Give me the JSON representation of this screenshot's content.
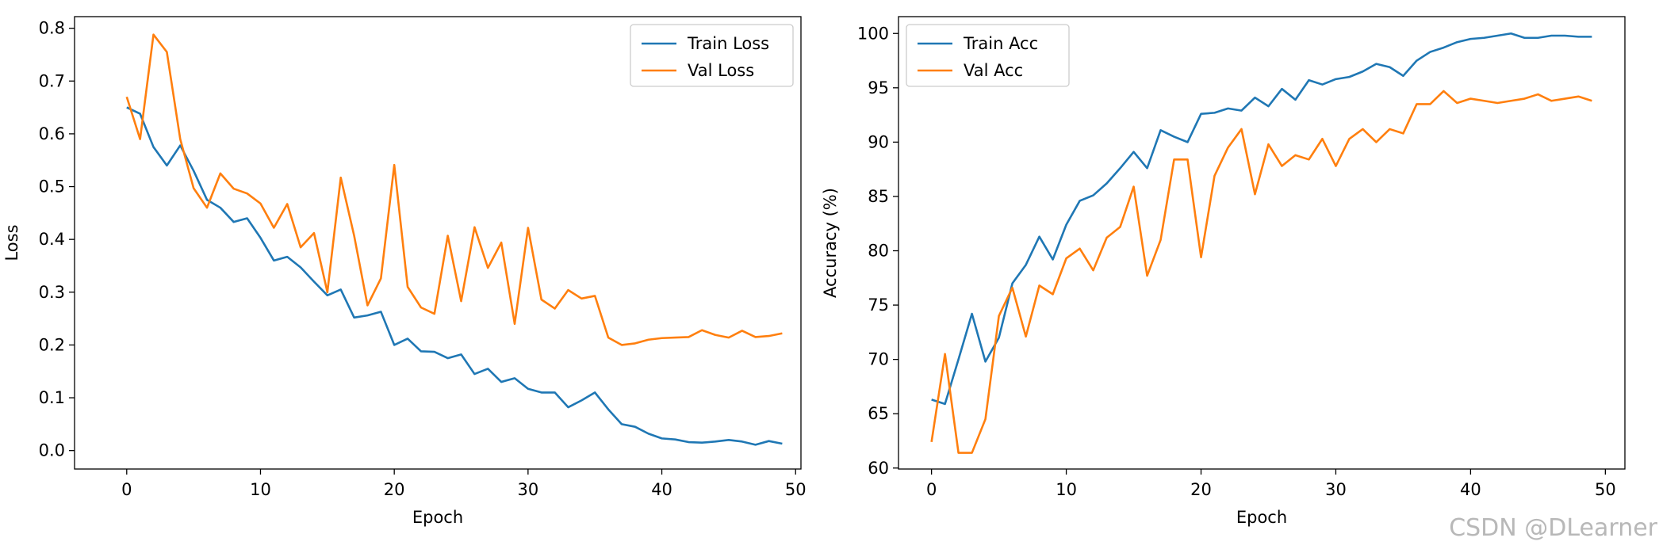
{
  "watermark": "CSDN @DLearner",
  "colors": {
    "train": "#1f77b4",
    "val": "#ff7f0e"
  },
  "chart_data": [
    {
      "type": "line",
      "xlabel": "Epoch",
      "ylabel": "Loss",
      "xlim": [
        -3.9,
        50.4
      ],
      "ylim": [
        -0.035,
        0.822
      ],
      "xticks": [
        0,
        10,
        20,
        30,
        40,
        50
      ],
      "yticks": [
        0.0,
        0.1,
        0.2,
        0.3,
        0.4,
        0.5,
        0.6,
        0.7,
        0.8
      ],
      "ytick_labels": [
        "0.0",
        "0.1",
        "0.2",
        "0.3",
        "0.4",
        "0.5",
        "0.6",
        "0.7",
        "0.8"
      ],
      "grid": false,
      "legend_position": "top-right",
      "x": [
        0,
        1,
        2,
        3,
        4,
        5,
        6,
        7,
        8,
        9,
        10,
        11,
        12,
        13,
        14,
        15,
        16,
        17,
        18,
        19,
        20,
        21,
        22,
        23,
        24,
        25,
        26,
        27,
        28,
        29,
        30,
        31,
        32,
        33,
        34,
        35,
        36,
        37,
        38,
        39,
        40,
        41,
        42,
        43,
        44,
        45,
        46,
        47,
        48,
        49
      ],
      "series": [
        {
          "name": "Train Loss",
          "color": "#1f77b4",
          "values": [
            0.65,
            0.638,
            0.575,
            0.54,
            0.578,
            0.53,
            0.475,
            0.46,
            0.433,
            0.44,
            0.403,
            0.36,
            0.367,
            0.347,
            0.32,
            0.294,
            0.305,
            0.252,
            0.256,
            0.263,
            0.2,
            0.212,
            0.188,
            0.187,
            0.175,
            0.182,
            0.145,
            0.155,
            0.13,
            0.137,
            0.117,
            0.11,
            0.11,
            0.082,
            0.095,
            0.11,
            0.078,
            0.05,
            0.045,
            0.032,
            0.023,
            0.021,
            0.016,
            0.015,
            0.017,
            0.02,
            0.017,
            0.011,
            0.018,
            0.013
          ]
        },
        {
          "name": "Val Loss",
          "color": "#ff7f0e",
          "values": [
            0.67,
            0.59,
            0.788,
            0.755,
            0.59,
            0.497,
            0.46,
            0.525,
            0.496,
            0.487,
            0.468,
            0.422,
            0.467,
            0.385,
            0.412,
            0.3,
            0.517,
            0.407,
            0.275,
            0.326,
            0.541,
            0.31,
            0.271,
            0.259,
            0.407,
            0.283,
            0.423,
            0.346,
            0.394,
            0.24,
            0.422,
            0.286,
            0.269,
            0.304,
            0.288,
            0.293,
            0.214,
            0.2,
            0.203,
            0.21,
            0.213,
            0.214,
            0.215,
            0.228,
            0.219,
            0.214,
            0.227,
            0.215,
            0.217,
            0.222
          ]
        }
      ]
    },
    {
      "type": "line",
      "xlabel": "Epoch",
      "ylabel": "Accuracy (%)",
      "xlim": [
        -2.45,
        51.45
      ],
      "ylim": [
        59.91,
        101.55
      ],
      "xticks": [
        0,
        10,
        20,
        30,
        40,
        50
      ],
      "yticks": [
        60,
        65,
        70,
        75,
        80,
        85,
        90,
        95,
        100
      ],
      "ytick_labels": [
        "60",
        "65",
        "70",
        "75",
        "80",
        "85",
        "90",
        "95",
        "100"
      ],
      "grid": false,
      "legend_position": "top-left",
      "x": [
        0,
        1,
        2,
        3,
        4,
        5,
        6,
        7,
        8,
        9,
        10,
        11,
        12,
        13,
        14,
        15,
        16,
        17,
        18,
        19,
        20,
        21,
        22,
        23,
        24,
        25,
        26,
        27,
        28,
        29,
        30,
        31,
        32,
        33,
        34,
        35,
        36,
        37,
        38,
        39,
        40,
        41,
        42,
        43,
        44,
        45,
        46,
        47,
        48,
        49
      ],
      "series": [
        {
          "name": "Train Acc",
          "color": "#1f77b4",
          "values": [
            66.3,
            65.9,
            70.0,
            74.2,
            69.8,
            72.0,
            77.0,
            78.7,
            81.3,
            79.2,
            82.4,
            84.6,
            85.1,
            86.2,
            87.6,
            89.1,
            87.6,
            91.1,
            90.5,
            90.0,
            92.6,
            92.7,
            93.1,
            92.9,
            94.1,
            93.3,
            94.9,
            93.9,
            95.7,
            95.3,
            95.8,
            96.0,
            96.5,
            97.2,
            96.9,
            96.1,
            97.5,
            98.3,
            98.7,
            99.2,
            99.5,
            99.6,
            99.8,
            100.0,
            99.6,
            99.6,
            99.8,
            99.8,
            99.7,
            99.7
          ]
        },
        {
          "name": "Val Acc",
          "color": "#ff7f0e",
          "values": [
            62.4,
            70.5,
            61.4,
            61.4,
            64.5,
            74.0,
            76.6,
            72.1,
            76.8,
            76.0,
            79.3,
            80.2,
            78.2,
            81.2,
            82.2,
            85.9,
            77.7,
            81.0,
            88.4,
            88.4,
            79.4,
            86.9,
            89.5,
            91.2,
            85.2,
            89.8,
            87.8,
            88.8,
            88.4,
            90.3,
            87.8,
            90.3,
            91.2,
            90.0,
            91.2,
            90.8,
            93.5,
            93.5,
            94.7,
            93.6,
            94.0,
            93.8,
            93.6,
            93.8,
            94.0,
            94.4,
            93.8,
            94.0,
            94.2,
            93.8
          ]
        }
      ]
    }
  ]
}
